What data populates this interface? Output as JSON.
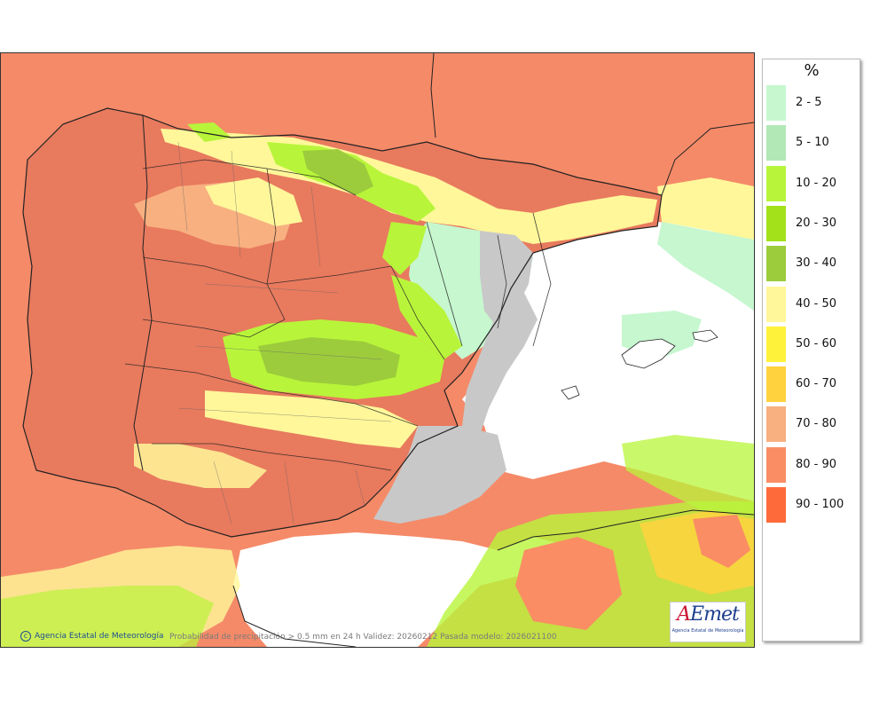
{
  "legend": {
    "unit": "%",
    "items": [
      {
        "label": "2 - 5",
        "color": "#c6f7cf"
      },
      {
        "label": "5 - 10",
        "color": "#b2e8b6"
      },
      {
        "label": "10 - 20",
        "color": "#b8f53a"
      },
      {
        "label": "20 - 30",
        "color": "#a3e11a"
      },
      {
        "label": "30 - 40",
        "color": "#9ccc3c"
      },
      {
        "label": "40 - 50",
        "color": "#fff79a"
      },
      {
        "label": "50 - 60",
        "color": "#fff23a"
      },
      {
        "label": "60 - 70",
        "color": "#ffd23e"
      },
      {
        "label": "70 - 80",
        "color": "#f8b080"
      },
      {
        "label": "80 - 90",
        "color": "#fa8d64"
      },
      {
        "label": "90 - 100",
        "color": "#ff6a3a"
      }
    ]
  },
  "footer": {
    "credit": "Agencia Estatal de Meteorología",
    "caption": "Probabilidad de precipitación > 0.5 mm en 24 h Validez: 20260212 Pasada modelo: 2026021100"
  },
  "logo": {
    "mark": "AEmet",
    "subtitle": "Agencia Estatal de Meteorología"
  },
  "colors": {
    "sea_background": "#f58a68",
    "land_high": "#e87a5e",
    "mediterranean_clear": "#ffffff",
    "relief_gray": "#c8c8c8",
    "border_line": "#222222"
  }
}
